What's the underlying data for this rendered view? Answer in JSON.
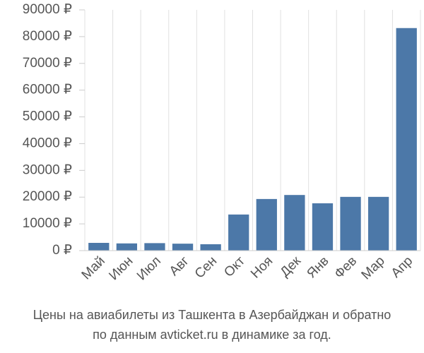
{
  "chart_data": {
    "type": "bar",
    "title": [
      "Цены на авиабилеты из Ташкента в Азербайджан и обратно",
      "по данным avticket.ru в динамике за год."
    ],
    "categories": [
      "Май",
      "Июн",
      "Июл",
      "Авг",
      "Сен",
      "Окт",
      "Ноя",
      "Дек",
      "Янв",
      "Фев",
      "Мар",
      "Апр"
    ],
    "values": [
      2900,
      2700,
      2800,
      2600,
      2400,
      13500,
      19300,
      20800,
      17700,
      20100,
      20100,
      83200
    ],
    "color": "#4c78a8",
    "ylim": [
      0,
      90000
    ],
    "yticks": [
      {
        "value": 0,
        "label": "0 ₽"
      },
      {
        "value": 10000,
        "label": "10000 ₽"
      },
      {
        "value": 20000,
        "label": "20000 ₽"
      },
      {
        "value": 30000,
        "label": "30000 ₽"
      },
      {
        "value": 40000,
        "label": "40000 ₽"
      },
      {
        "value": 50000,
        "label": "50000 ₽"
      },
      {
        "value": 60000,
        "label": "60000 ₽"
      },
      {
        "value": 70000,
        "label": "70000 ₽"
      },
      {
        "value": 80000,
        "label": "80000 ₽"
      },
      {
        "value": 90000,
        "label": "90000 ₽"
      }
    ],
    "grid": true
  }
}
